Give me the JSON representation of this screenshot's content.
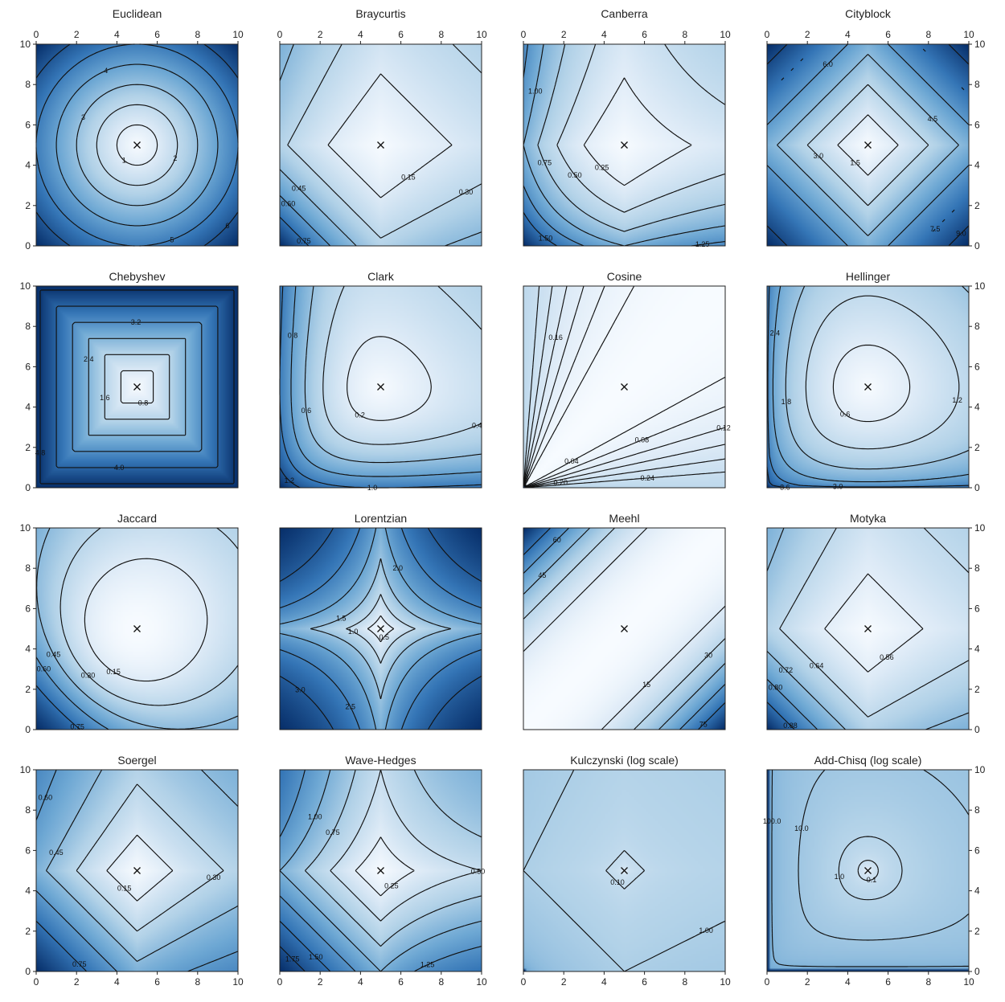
{
  "chart_data": [
    {
      "type": "heatmap",
      "title": "Euclidean",
      "metric": "euclidean",
      "xlim": [
        0,
        10
      ],
      "ylim": [
        0,
        10
      ],
      "xticks": [
        0,
        2,
        4,
        6,
        8,
        10
      ],
      "yticks": [
        0,
        2,
        4,
        6,
        8,
        10
      ],
      "center": [
        5,
        5
      ],
      "contour_levels": [
        1,
        2,
        3,
        4,
        5,
        6
      ],
      "contour_labels": [
        "1",
        "2",
        "3",
        "4",
        "5",
        "6"
      ],
      "colormap": "Blues",
      "log_scale": false
    },
    {
      "type": "heatmap",
      "title": "Braycurtis",
      "metric": "braycurtis",
      "xlim": [
        0,
        10
      ],
      "ylim": [
        0,
        10
      ],
      "xticks": [
        0,
        2,
        4,
        6,
        8,
        10
      ],
      "yticks": [
        0,
        2,
        4,
        6,
        8,
        10
      ],
      "center": [
        5,
        5
      ],
      "contour_levels": [
        0.15,
        0.3,
        0.45,
        0.6,
        0.75
      ],
      "contour_labels": [
        "0.15",
        "0.30",
        "0.45",
        "0.60",
        "0.75"
      ],
      "colormap": "Blues",
      "log_scale": false
    },
    {
      "type": "heatmap",
      "title": "Canberra",
      "metric": "canberra",
      "xlim": [
        0,
        10
      ],
      "ylim": [
        0,
        10
      ],
      "xticks": [
        0,
        2,
        4,
        6,
        8,
        10
      ],
      "yticks": [
        0,
        2,
        4,
        6,
        8,
        10
      ],
      "center": [
        5,
        5
      ],
      "contour_levels": [
        0.25,
        0.5,
        0.75,
        1.0,
        1.25,
        1.5
      ],
      "contour_labels": [
        "0.25",
        "0.50",
        "0.75",
        "1.00",
        "1.25",
        "1.50"
      ],
      "colormap": "Blues",
      "log_scale": false
    },
    {
      "type": "heatmap",
      "title": "Cityblock",
      "metric": "cityblock",
      "xlim": [
        0,
        10
      ],
      "ylim": [
        0,
        10
      ],
      "xticks": [
        0,
        2,
        4,
        6,
        8,
        10
      ],
      "yticks": [
        0,
        2,
        4,
        6,
        8,
        10
      ],
      "center": [
        5,
        5
      ],
      "contour_levels": [
        1.5,
        3.0,
        4.5,
        6.0,
        7.5,
        9.0
      ],
      "contour_labels": [
        "1.5",
        "3.0",
        "4.5",
        "6.0",
        "7.5",
        "9.0"
      ],
      "colormap": "Blues",
      "log_scale": false
    },
    {
      "type": "heatmap",
      "title": "Chebyshev",
      "metric": "chebyshev",
      "xlim": [
        0,
        10
      ],
      "ylim": [
        0,
        10
      ],
      "xticks": [
        0,
        2,
        4,
        6,
        8,
        10
      ],
      "yticks": [
        0,
        2,
        4,
        6,
        8,
        10
      ],
      "center": [
        5,
        5
      ],
      "contour_levels": [
        0.8,
        1.6,
        2.4,
        3.2,
        4.0,
        4.8
      ],
      "contour_labels": [
        "0.8",
        "1.6",
        "2.4",
        "3.2",
        "4.0",
        "4.8"
      ],
      "colormap": "Blues",
      "log_scale": false
    },
    {
      "type": "heatmap",
      "title": "Clark",
      "metric": "clark",
      "xlim": [
        0,
        10
      ],
      "ylim": [
        0,
        10
      ],
      "xticks": [
        0,
        2,
        4,
        6,
        8,
        10
      ],
      "yticks": [
        0,
        2,
        4,
        6,
        8,
        10
      ],
      "center": [
        5,
        5
      ],
      "contour_levels": [
        0.2,
        0.4,
        0.6,
        0.8,
        1.0,
        1.2
      ],
      "contour_labels": [
        "0.2",
        "0.4",
        "0.6",
        "0.8",
        "1.0",
        "1.2"
      ],
      "colormap": "Blues",
      "log_scale": false
    },
    {
      "type": "heatmap",
      "title": "Cosine",
      "metric": "cosine",
      "xlim": [
        0,
        10
      ],
      "ylim": [
        0,
        10
      ],
      "xticks": [
        0,
        2,
        4,
        6,
        8,
        10
      ],
      "yticks": [
        0,
        2,
        4,
        6,
        8,
        10
      ],
      "center": [
        5,
        5
      ],
      "contour_levels": [
        0.04,
        0.08,
        0.12,
        0.16,
        0.2,
        0.24
      ],
      "contour_labels": [
        "0.04",
        "0.08",
        "0.12",
        "0.16",
        "0.20",
        "0.24"
      ],
      "colormap": "Blues",
      "log_scale": false
    },
    {
      "type": "heatmap",
      "title": "Hellinger",
      "metric": "hellinger",
      "xlim": [
        0,
        10
      ],
      "ylim": [
        0,
        10
      ],
      "xticks": [
        0,
        2,
        4,
        6,
        8,
        10
      ],
      "yticks": [
        0,
        2,
        4,
        6,
        8,
        10
      ],
      "center": [
        5,
        5
      ],
      "contour_levels": [
        0.6,
        1.2,
        1.8,
        2.4,
        3.0,
        3.6
      ],
      "contour_labels": [
        "0.6",
        "1.2",
        "1.8",
        "2.4",
        "3.0",
        "3.6"
      ],
      "colormap": "Blues",
      "log_scale": false
    },
    {
      "type": "heatmap",
      "title": "Jaccard",
      "metric": "jaccard",
      "xlim": [
        0,
        10
      ],
      "ylim": [
        0,
        10
      ],
      "xticks": [
        0,
        2,
        4,
        6,
        8,
        10
      ],
      "yticks": [
        0,
        2,
        4,
        6,
        8,
        10
      ],
      "center": [
        5,
        5
      ],
      "contour_levels": [
        0.15,
        0.3,
        0.45,
        0.6,
        0.75
      ],
      "contour_labels": [
        "0.15",
        "0.30",
        "0.45",
        "0.60",
        "0.75"
      ],
      "colormap": "Blues",
      "log_scale": false
    },
    {
      "type": "heatmap",
      "title": "Lorentzian",
      "metric": "lorentzian",
      "xlim": [
        0,
        10
      ],
      "ylim": [
        0,
        10
      ],
      "xticks": [
        0,
        2,
        4,
        6,
        8,
        10
      ],
      "yticks": [
        0,
        2,
        4,
        6,
        8,
        10
      ],
      "center": [
        5,
        5
      ],
      "contour_levels": [
        0.5,
        1.0,
        1.5,
        2.0,
        2.5,
        3.0
      ],
      "contour_labels": [
        "0.5",
        "1.0",
        "1.5",
        "2.0",
        "2.5",
        "3.0"
      ],
      "colormap": "Blues",
      "log_scale": false
    },
    {
      "type": "heatmap",
      "title": "Meehl",
      "metric": "meehl",
      "xlim": [
        0,
        10
      ],
      "ylim": [
        0,
        10
      ],
      "xticks": [
        0,
        2,
        4,
        6,
        8,
        10
      ],
      "yticks": [
        0,
        2,
        4,
        6,
        8,
        10
      ],
      "center": [
        5,
        5
      ],
      "contour_levels": [
        15,
        30,
        45,
        60,
        75
      ],
      "contour_labels": [
        "15",
        "30",
        "45",
        "60",
        "75"
      ],
      "colormap": "Blues",
      "log_scale": false
    },
    {
      "type": "heatmap",
      "title": "Motyka",
      "metric": "motyka",
      "xlim": [
        0,
        10
      ],
      "ylim": [
        0,
        10
      ],
      "xticks": [
        0,
        2,
        4,
        6,
        8,
        10
      ],
      "yticks": [
        0,
        2,
        4,
        6,
        8,
        10
      ],
      "center": [
        5,
        5
      ],
      "contour_levels": [
        0.56,
        0.64,
        0.72,
        0.8,
        0.88
      ],
      "contour_labels": [
        "0.56",
        "0.64",
        "0.72",
        "0.80",
        "0.88"
      ],
      "colormap": "Blues",
      "log_scale": false
    },
    {
      "type": "heatmap",
      "title": "Soergel",
      "metric": "soergel",
      "xlim": [
        0,
        10
      ],
      "ylim": [
        0,
        10
      ],
      "xticks": [
        0,
        2,
        4,
        6,
        8,
        10
      ],
      "yticks": [
        0,
        2,
        4,
        6,
        8,
        10
      ],
      "center": [
        5,
        5
      ],
      "contour_levels": [
        0.15,
        0.3,
        0.45,
        0.6,
        0.75
      ],
      "contour_labels": [
        "0.15",
        "0.30",
        "0.45",
        "0.60",
        "0.75"
      ],
      "colormap": "Blues",
      "log_scale": false
    },
    {
      "type": "heatmap",
      "title": "Wave-Hedges",
      "metric": "wavehedges",
      "xlim": [
        0,
        10
      ],
      "ylim": [
        0,
        10
      ],
      "xticks": [
        0,
        2,
        4,
        6,
        8,
        10
      ],
      "yticks": [
        0,
        2,
        4,
        6,
        8,
        10
      ],
      "center": [
        5,
        5
      ],
      "contour_levels": [
        0.25,
        0.5,
        0.75,
        1.0,
        1.25,
        1.5,
        1.75
      ],
      "contour_labels": [
        "0.25",
        "0.50",
        "0.75",
        "1.00",
        "1.25",
        "1.50",
        "1.75"
      ],
      "colormap": "Blues",
      "log_scale": false
    },
    {
      "type": "heatmap",
      "title": "Kulczynski (log scale)",
      "metric": "kulczynski",
      "xlim": [
        0,
        10
      ],
      "ylim": [
        0,
        10
      ],
      "xticks": [
        0,
        2,
        4,
        6,
        8,
        10
      ],
      "yticks": [
        0,
        2,
        4,
        6,
        8,
        10
      ],
      "center": [
        5,
        5
      ],
      "contour_levels": [
        0.1,
        1.0
      ],
      "contour_labels": [
        "0.10",
        "1.00"
      ],
      "colormap": "Blues",
      "log_scale": true
    },
    {
      "type": "heatmap",
      "title": "Add-Chisq (log scale)",
      "metric": "addchisq",
      "xlim": [
        0,
        10
      ],
      "ylim": [
        0,
        10
      ],
      "xticks": [
        0,
        2,
        4,
        6,
        8,
        10
      ],
      "yticks": [
        0,
        2,
        4,
        6,
        8,
        10
      ],
      "center": [
        5,
        5
      ],
      "contour_levels": [
        0.1,
        1.0,
        10.0,
        100.0
      ],
      "contour_labels": [
        "0.1",
        "1.0",
        "10.0",
        "100.0"
      ],
      "colormap": "Blues",
      "log_scale": true
    }
  ],
  "colors": {
    "low": "#f7fbff",
    "mid": "#6aaed6",
    "high": "#08306b",
    "contour": "#111111"
  }
}
